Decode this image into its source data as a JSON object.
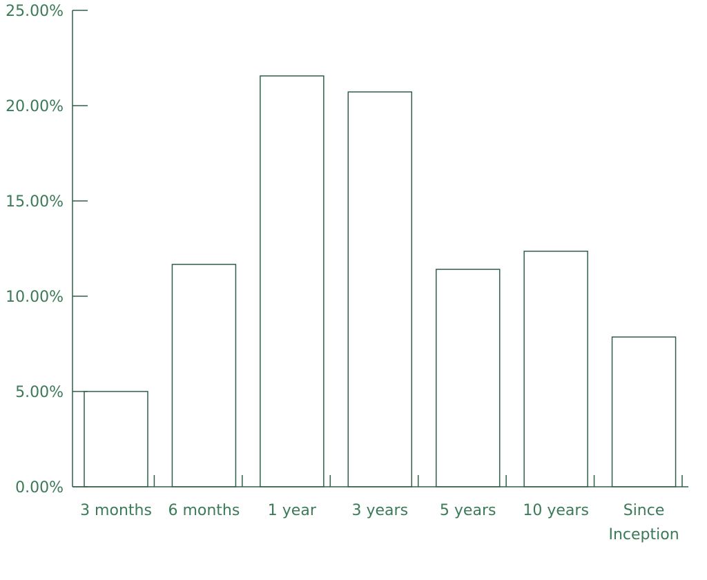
{
  "chart_data": {
    "type": "bar",
    "categories": [
      "3 months",
      "6 months",
      "1 year",
      "3 years",
      "5 years",
      "10 years",
      "Since Inception"
    ],
    "values": [
      5.0,
      11.67,
      21.56,
      20.72,
      11.41,
      12.36,
      7.86
    ],
    "color": "#2e5e45",
    "ylim": [
      0,
      25
    ],
    "yticks": [
      {
        "value": 0,
        "label": "0.00%"
      },
      {
        "value": 5,
        "label": "5.00%"
      },
      {
        "value": 10,
        "label": "10.00%"
      },
      {
        "value": 15,
        "label": "15.00%"
      },
      {
        "value": 20,
        "label": "20.00%"
      },
      {
        "value": 25,
        "label": "25.00%"
      }
    ],
    "grid": false
  }
}
